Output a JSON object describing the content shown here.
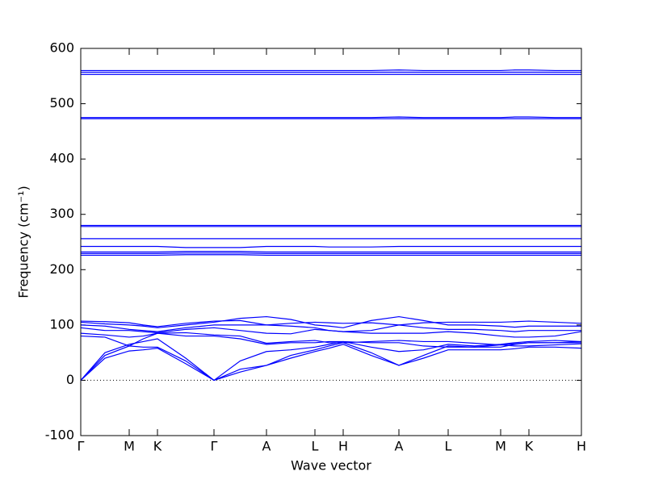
{
  "chart_data": {
    "type": "line",
    "xlabel": "Wave vector",
    "ylabel": "Frequency (cm⁻¹)",
    "color": "#0000ff",
    "hline": 0,
    "xlim": [
      0,
      6.2
    ],
    "xticks": [
      {
        "value": 0,
        "label": "Γ"
      },
      {
        "value": 0.6,
        "label": "M"
      },
      {
        "value": 0.95,
        "label": "K"
      },
      {
        "value": 1.65,
        "label": "Γ"
      },
      {
        "value": 2.3,
        "label": "A"
      },
      {
        "value": 2.9,
        "label": "L"
      },
      {
        "value": 3.25,
        "label": "H"
      },
      {
        "value": 3.94,
        "label": "A"
      },
      {
        "value": 4.55,
        "label": "L"
      },
      {
        "value": 5.2,
        "label": "M"
      },
      {
        "value": 5.55,
        "label": "K"
      },
      {
        "value": 6.2,
        "label": "H"
      }
    ],
    "ylim": [
      -100,
      600
    ],
    "yticks": [
      -100,
      0,
      100,
      200,
      300,
      400,
      500,
      600
    ],
    "x": [
      0,
      0.3,
      0.6,
      0.775,
      0.95,
      1.3,
      1.65,
      1.975,
      2.3,
      2.6,
      2.9,
      3.075,
      3.25,
      3.595,
      3.94,
      4.245,
      4.55,
      4.875,
      5.2,
      5.375,
      5.55,
      5.875,
      6.2
    ],
    "series": [
      {
        "values": [
          0,
          40,
          53,
          55,
          58,
          30,
          0,
          15,
          27,
          40,
          52,
          58,
          65,
          45,
          27,
          40,
          55,
          55,
          55,
          57,
          60,
          60,
          58
        ]
      },
      {
        "values": [
          0,
          45,
          62,
          60,
          60,
          35,
          0,
          20,
          27,
          45,
          55,
          62,
          68,
          50,
          27,
          45,
          62,
          60,
          60,
          65,
          68,
          68,
          68
        ]
      },
      {
        "values": [
          0,
          50,
          65,
          70,
          75,
          40,
          0,
          35,
          52,
          55,
          60,
          65,
          70,
          60,
          52,
          55,
          65,
          62,
          65,
          68,
          70,
          72,
          70
        ]
      },
      {
        "values": [
          80,
          78,
          62,
          75,
          85,
          80,
          80,
          75,
          65,
          68,
          68,
          70,
          70,
          68,
          68,
          62,
          60,
          60,
          64,
          62,
          62,
          64,
          66
        ]
      },
      {
        "values": [
          85,
          82,
          78,
          80,
          85,
          86,
          82,
          80,
          67,
          70,
          72,
          68,
          68,
          70,
          72,
          70,
          70,
          67,
          64,
          66,
          68,
          68,
          70
        ]
      },
      {
        "values": [
          95,
          90,
          90,
          88,
          86,
          92,
          95,
          90,
          85,
          84,
          92,
          90,
          88,
          85,
          85,
          85,
          88,
          85,
          80,
          78,
          78,
          80,
          88
        ]
      },
      {
        "values": [
          100,
          98,
          92,
          90,
          88,
          95,
          100,
          100,
          100,
          98,
          95,
          90,
          88,
          90,
          100,
          95,
          92,
          92,
          90,
          88,
          90,
          90,
          90
        ]
      },
      {
        "values": [
          105,
          102,
          100,
          98,
          95,
          100,
          105,
          112,
          115,
          110,
          100,
          98,
          95,
          108,
          115,
          108,
          100,
          100,
          98,
          96,
          98,
          98,
          98
        ]
      },
      {
        "values": [
          107,
          106,
          104,
          100,
          97,
          103,
          107,
          108,
          100,
          103,
          105,
          104,
          103,
          104,
          100,
          104,
          105,
          105,
          105,
          106,
          107,
          105,
          103
        ]
      },
      {
        "values": [
          226,
          226,
          226,
          226,
          226,
          227,
          227,
          227,
          226,
          226,
          226,
          226,
          226,
          226,
          226,
          226,
          226,
          226,
          226,
          226,
          226,
          226,
          226
        ]
      },
      {
        "values": [
          229,
          229,
          229,
          229,
          229,
          230,
          230,
          230,
          229,
          229,
          229,
          229,
          229,
          229,
          229,
          229,
          229,
          229,
          229,
          229,
          229,
          229,
          229
        ]
      },
      {
        "values": [
          232,
          232,
          232,
          232,
          232,
          233,
          233,
          233,
          232,
          232,
          232,
          232,
          232,
          232,
          232,
          232,
          232,
          232,
          232,
          232,
          232,
          232,
          232
        ]
      },
      {
        "values": [
          242,
          242,
          242,
          242,
          242,
          240,
          240,
          240,
          242,
          242,
          242,
          241,
          241,
          241,
          242,
          242,
          242,
          242,
          242,
          242,
          242,
          242,
          242
        ]
      },
      {
        "values": [
          256,
          256,
          256,
          256,
          256,
          256,
          256,
          256,
          256,
          256,
          256,
          256,
          256,
          256,
          256,
          256,
          256,
          256,
          256,
          256,
          256,
          256,
          256
        ]
      },
      {
        "values": [
          278,
          278,
          278,
          278,
          278,
          278,
          278,
          278,
          278,
          278,
          278,
          278,
          278,
          278,
          278,
          278,
          278,
          278,
          278,
          278,
          278,
          278,
          278
        ]
      },
      {
        "values": [
          280,
          280,
          280,
          280,
          280,
          280,
          280,
          280,
          280,
          280,
          280,
          280,
          280,
          280,
          280,
          280,
          280,
          280,
          280,
          280,
          280,
          280,
          280
        ]
      },
      {
        "values": [
          473,
          473,
          473,
          473,
          473,
          473,
          473,
          473,
          473,
          473,
          473,
          473,
          473,
          473,
          473,
          473,
          473,
          473,
          473,
          473,
          473,
          473,
          473
        ]
      },
      {
        "values": [
          475,
          475,
          475,
          475,
          475,
          475,
          475,
          475,
          475,
          475,
          475,
          475,
          475,
          475,
          476,
          475,
          475,
          475,
          475,
          476,
          476,
          475,
          475
        ]
      },
      {
        "values": [
          553,
          553,
          553,
          553,
          553,
          553,
          553,
          553,
          553,
          553,
          553,
          553,
          553,
          553,
          553,
          553,
          553,
          553,
          553,
          553,
          553,
          553,
          553
        ]
      },
      {
        "values": [
          557,
          557,
          557,
          557,
          557,
          557,
          557,
          557,
          557,
          557,
          557,
          557,
          557,
          557,
          557,
          557,
          557,
          557,
          557,
          557,
          557,
          557,
          557
        ]
      },
      {
        "values": [
          560,
          560,
          560,
          560,
          560,
          560,
          560,
          560,
          560,
          560,
          560,
          560,
          560,
          560,
          561,
          560,
          560,
          560,
          560,
          561,
          561,
          560,
          560
        ]
      }
    ]
  }
}
